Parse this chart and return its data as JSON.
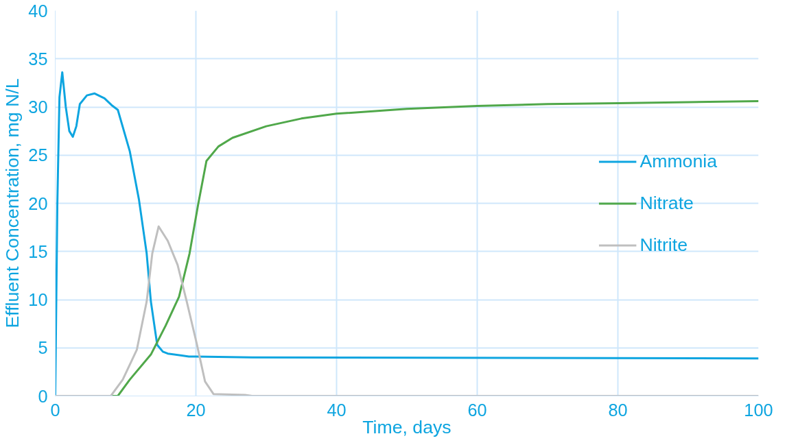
{
  "chart_data": {
    "type": "line",
    "xlabel": "Time, days",
    "ylabel": "Effluent Concentration, mg N/L",
    "xlim": [
      0,
      100
    ],
    "xticks": [
      0,
      20,
      40,
      60,
      80,
      100
    ],
    "ylim": [
      0,
      40
    ],
    "yticks": [
      0,
      5,
      10,
      15,
      20,
      25,
      30,
      35,
      40
    ],
    "grid": true,
    "legend": "right",
    "marker": "none",
    "line_style": "solid",
    "series": [
      {
        "name": "Ammonia",
        "color": "#0ea5e0",
        "x": [
          0,
          0.3,
          0.6,
          1,
          1.5,
          2,
          2.5,
          3,
          3.5,
          4.5,
          5.6,
          7,
          8,
          8.9,
          10.6,
          11.9,
          13,
          13.6,
          14.5,
          15.3,
          16,
          18,
          19,
          20,
          28,
          100
        ],
        "values": [
          0,
          20,
          31,
          33.6,
          30,
          27.5,
          26.9,
          28,
          30.3,
          31.2,
          31.4,
          30.9,
          30.2,
          29.7,
          25.4,
          20.4,
          14.8,
          9.8,
          5.3,
          4.6,
          4.4,
          4.2,
          4.1,
          4.1,
          4.0,
          3.9
        ]
      },
      {
        "name": "Nitrate",
        "color": "#50a84a",
        "x": [
          0,
          8.9,
          10.6,
          13.6,
          15.7,
          17.6,
          19.1,
          20.3,
          21.5,
          23.2,
          25.2,
          30,
          35,
          40,
          50,
          60,
          70,
          80,
          90,
          100
        ],
        "values": [
          0,
          0,
          1.7,
          4.3,
          7.3,
          10.3,
          14.8,
          19.8,
          24.4,
          25.9,
          26.8,
          28,
          28.8,
          29.3,
          29.8,
          30.1,
          30.3,
          30.4,
          30.5,
          30.6
        ]
      },
      {
        "name": "Nitrite",
        "color": "#bfbfbf",
        "x": [
          0,
          7.9,
          9.6,
          11.6,
          13,
          13.8,
          14.7,
          16,
          17.4,
          18.7,
          20.1,
          21.3,
          22.5,
          27,
          28,
          100
        ],
        "values": [
          0,
          0,
          1.7,
          4.8,
          9.8,
          14.8,
          17.6,
          16.1,
          13.6,
          9.8,
          5.5,
          1.5,
          0.2,
          0.1,
          0,
          0
        ]
      }
    ]
  }
}
